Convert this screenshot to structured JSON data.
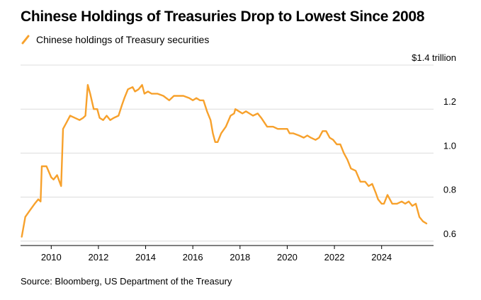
{
  "title": "Chinese Holdings of Treasuries Drop to Lowest Since 2008",
  "legend_label": "Chinese holdings of Treasury securities",
  "source": "Source: Bloomberg, US Department of the Treasury",
  "colors": {
    "line": "#f7a12c",
    "grid": "#dcdcdc",
    "axis": "#000000"
  },
  "chart_data": {
    "type": "line",
    "title": "Chinese Holdings of Treasuries Drop to Lowest Since 2008",
    "xlabel": "",
    "ylabel": "",
    "x_ticks": [
      2010,
      2012,
      2014,
      2016,
      2018,
      2020,
      2022,
      2024
    ],
    "y_ticks": [
      {
        "value": 0.6,
        "label": "0.6"
      },
      {
        "value": 0.8,
        "label": "0.8"
      },
      {
        "value": 1.0,
        "label": "1.0"
      },
      {
        "value": 1.2,
        "label": "1.2"
      },
      {
        "value": 1.4,
        "label": "$1.4 trillion"
      }
    ],
    "xlim": [
      2008.7,
      2026.2
    ],
    "ylim": [
      0.58,
      1.4
    ],
    "series": [
      {
        "name": "Chinese holdings of Treasury securities",
        "x": [
          2008.75,
          2008.9,
          2009.1,
          2009.3,
          2009.45,
          2009.55,
          2009.6,
          2009.7,
          2009.8,
          2010.0,
          2010.1,
          2010.25,
          2010.35,
          2010.42,
          2010.5,
          2010.65,
          2010.8,
          2011.0,
          2011.2,
          2011.35,
          2011.45,
          2011.55,
          2011.65,
          2011.8,
          2011.95,
          2012.05,
          2012.2,
          2012.35,
          2012.5,
          2012.65,
          2012.85,
          2013.0,
          2013.1,
          2013.25,
          2013.45,
          2013.55,
          2013.7,
          2013.85,
          2013.95,
          2014.1,
          2014.25,
          2014.5,
          2014.75,
          2015.0,
          2015.2,
          2015.35,
          2015.6,
          2015.85,
          2016.0,
          2016.15,
          2016.3,
          2016.45,
          2016.6,
          2016.75,
          2016.85,
          2016.95,
          2017.05,
          2017.2,
          2017.4,
          2017.6,
          2017.75,
          2017.8,
          2017.95,
          2018.1,
          2018.25,
          2018.4,
          2018.55,
          2018.75,
          2018.9,
          2019.15,
          2019.4,
          2019.6,
          2019.85,
          2020.0,
          2020.1,
          2020.25,
          2020.5,
          2020.7,
          2020.85,
          2021.0,
          2021.2,
          2021.35,
          2021.5,
          2021.65,
          2021.8,
          2021.95,
          2022.1,
          2022.25,
          2022.4,
          2022.55,
          2022.7,
          2022.9,
          2023.1,
          2023.3,
          2023.45,
          2023.6,
          2023.75,
          2023.85,
          2024.0,
          2024.1,
          2024.25,
          2024.45,
          2024.65,
          2024.85,
          2025.0,
          2025.15,
          2025.3,
          2025.45,
          2025.6,
          2025.75,
          2025.9
        ],
        "values": [
          0.62,
          0.71,
          0.74,
          0.77,
          0.79,
          0.78,
          0.94,
          0.94,
          0.94,
          0.89,
          0.88,
          0.9,
          0.87,
          0.85,
          1.11,
          1.14,
          1.17,
          1.16,
          1.15,
          1.16,
          1.17,
          1.31,
          1.27,
          1.2,
          1.2,
          1.16,
          1.15,
          1.17,
          1.15,
          1.16,
          1.17,
          1.22,
          1.25,
          1.29,
          1.3,
          1.28,
          1.29,
          1.31,
          1.27,
          1.28,
          1.27,
          1.27,
          1.26,
          1.24,
          1.26,
          1.26,
          1.26,
          1.25,
          1.24,
          1.25,
          1.24,
          1.24,
          1.19,
          1.15,
          1.09,
          1.05,
          1.05,
          1.09,
          1.12,
          1.17,
          1.18,
          1.2,
          1.19,
          1.18,
          1.19,
          1.18,
          1.17,
          1.18,
          1.16,
          1.12,
          1.12,
          1.11,
          1.11,
          1.11,
          1.09,
          1.09,
          1.08,
          1.07,
          1.08,
          1.07,
          1.06,
          1.07,
          1.1,
          1.1,
          1.07,
          1.06,
          1.04,
          1.04,
          1.0,
          0.97,
          0.93,
          0.92,
          0.87,
          0.87,
          0.85,
          0.86,
          0.82,
          0.79,
          0.77,
          0.77,
          0.81,
          0.77,
          0.77,
          0.78,
          0.77,
          0.78,
          0.76,
          0.77,
          0.71,
          0.69,
          0.68
        ]
      }
    ]
  }
}
